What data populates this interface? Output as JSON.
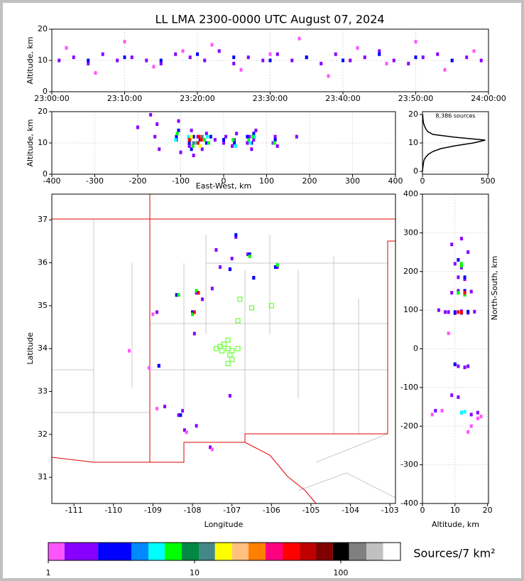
{
  "chart_data": [
    {
      "type": "scatter",
      "title": "LL LMA 2300-0000 UTC August 07, 2024",
      "ylabel": "Altitude, km",
      "xlim": [
        "23:00:00",
        "24:00:00"
      ],
      "xticks": [
        "23:00:00",
        "23:10:00",
        "23:20:00",
        "23:30:00",
        "23:40:00",
        "23:50:00",
        "24:00:00"
      ],
      "ylim": [
        0,
        20
      ],
      "yticks": [
        0,
        10,
        20
      ],
      "grid": true,
      "series": [
        {
          "color": "#8800ff",
          "x": [
            "23:01:00",
            "23:03:00",
            "23:05:00",
            "23:07:00",
            "23:09:00",
            "23:11:00",
            "23:13:00",
            "23:15:00",
            "23:17:00",
            "23:19:00",
            "23:21:00",
            "23:23:00",
            "23:25:00",
            "23:27:00",
            "23:29:00",
            "23:31:00",
            "23:33:00",
            "23:35:00",
            "23:37:00",
            "23:39:00",
            "23:41:00",
            "23:43:00",
            "23:45:00",
            "23:47:00",
            "23:49:00",
            "23:51:00",
            "23:53:00",
            "23:55:00",
            "23:57:00",
            "23:59:00"
          ],
          "y": [
            10,
            11,
            9,
            12,
            10,
            11,
            10,
            9,
            12,
            11,
            10,
            13,
            9,
            11,
            10,
            12,
            10,
            11,
            9,
            12,
            10,
            11,
            13,
            10,
            9,
            11,
            12,
            10,
            11,
            10
          ]
        },
        {
          "color": "#ff55ff",
          "x": [
            "23:02:00",
            "23:06:00",
            "23:10:00",
            "23:14:00",
            "23:18:00",
            "23:22:00",
            "23:26:00",
            "23:30:00",
            "23:34:00",
            "23:38:00",
            "23:42:00",
            "23:46:00",
            "23:50:00",
            "23:54:00",
            "23:58:00"
          ],
          "y": [
            14,
            6,
            16,
            8,
            13,
            15,
            7,
            12,
            17,
            5,
            14,
            9,
            16,
            7,
            13
          ]
        },
        {
          "color": "#0000ff",
          "x": [
            "23:05:00",
            "23:10:00",
            "23:15:00",
            "23:20:00",
            "23:25:00",
            "23:30:00",
            "23:35:00",
            "23:40:00",
            "23:45:00",
            "23:50:00",
            "23:55:00"
          ],
          "y": [
            10,
            11,
            10,
            12,
            11,
            10,
            11,
            10,
            12,
            11,
            10
          ]
        }
      ]
    },
    {
      "type": "scatter",
      "xlabel": "East-West, km",
      "ylabel": "Altitude, km",
      "xlim": [
        -400,
        400
      ],
      "xticks": [
        -400,
        -300,
        -200,
        -100,
        0,
        100,
        200,
        300,
        400
      ],
      "ylim": [
        0,
        20
      ],
      "yticks": [
        0,
        10,
        20
      ],
      "grid": true,
      "series": [
        {
          "color": "#8800ff",
          "x": [
            -160,
            -155,
            -150,
            -110,
            -105,
            -100,
            -80,
            -75,
            -70,
            -60,
            -50,
            -40,
            -35,
            -20,
            0,
            5,
            20,
            25,
            30,
            55,
            60,
            65,
            70,
            75,
            115,
            120,
            125,
            -200,
            -170,
            170
          ],
          "y": [
            12,
            16,
            8,
            11,
            17,
            7,
            9,
            14,
            6,
            12,
            8,
            13,
            10,
            11,
            10,
            12,
            9,
            11,
            13,
            10,
            12,
            8,
            11,
            14,
            10,
            12,
            9,
            15,
            19,
            12
          ]
        },
        {
          "color": "#0000ff",
          "x": [
            -110,
            -105,
            -80,
            -75,
            -70,
            -55,
            -40,
            -30,
            0,
            25,
            55,
            65,
            70,
            120
          ],
          "y": [
            12,
            14,
            10,
            8,
            12,
            11,
            10,
            12,
            11,
            10,
            12,
            10,
            13,
            11
          ]
        },
        {
          "color": "#00ffff",
          "x": [
            -112,
            -82,
            -65,
            -38,
            28,
            62,
            72
          ],
          "y": [
            11,
            12,
            10,
            12,
            9,
            10,
            12
          ]
        },
        {
          "color": "#00ff00",
          "x": [
            -108,
            -78,
            -72,
            -45,
            -35,
            22,
            58,
            68,
            118
          ],
          "y": [
            13,
            11,
            9,
            11,
            10,
            11,
            11,
            12,
            10
          ]
        },
        {
          "color": "#448888",
          "x": [
            -70,
            -50
          ],
          "y": [
            10,
            12
          ]
        },
        {
          "color": "#ffff00",
          "x": [
            -75,
            -55
          ],
          "y": [
            12,
            9
          ]
        },
        {
          "color": "#ff0000",
          "x": [
            -80,
            -60,
            -57,
            -52
          ],
          "y": [
            11,
            10,
            12,
            11
          ]
        }
      ]
    },
    {
      "type": "line",
      "annotation": "8,386 sources",
      "xlim": [
        0,
        505
      ],
      "xticks": [
        0,
        500
      ],
      "ylim": [
        -1,
        21
      ],
      "yticks": [
        0,
        10,
        20
      ],
      "grid": true,
      "series": [
        {
          "color": "#000000",
          "x": [
            0,
            2,
            5,
            8,
            12,
            25,
            45,
            80,
            140,
            250,
            390,
            480,
            250,
            80,
            40,
            25,
            15,
            8,
            5,
            3,
            2
          ],
          "y": [
            0,
            1,
            2,
            3,
            4,
            5,
            6,
            7,
            8,
            9,
            10,
            11,
            12,
            13,
            14,
            15,
            16,
            17,
            18,
            19,
            20
          ]
        }
      ]
    },
    {
      "type": "scatter",
      "xlabel": "Longitude",
      "ylabel": "Latitude",
      "xlim": [
        -111.56,
        -102.86
      ],
      "xticks": [
        -111,
        -110,
        -109,
        -108,
        -107,
        -106,
        -105,
        -104,
        -103
      ],
      "ylim": [
        30.39,
        37.6
      ],
      "yticks": [
        31,
        32,
        33,
        34,
        35,
        36,
        37
      ],
      "grid": false,
      "series": [
        {
          "color": "#8800ff",
          "x": [
            -106.9,
            -107.0,
            -106.6,
            -106.45,
            -105.85,
            -107.05,
            -107.3,
            -107.4,
            -108.4,
            -107.9,
            -107.75,
            -107.5,
            -108.0,
            -107.95,
            -108.9,
            -108.85,
            -108.7,
            -108.35,
            -108.25,
            -108.2,
            -107.05,
            -107.9,
            -107.55
          ],
          "y": [
            36.6,
            36.1,
            36.2,
            35.65,
            35.9,
            35.85,
            35.9,
            36.3,
            35.25,
            35.3,
            35.15,
            35.4,
            34.85,
            34.35,
            34.85,
            33.6,
            32.65,
            32.45,
            32.55,
            32.1,
            32.9,
            32.2,
            31.7
          ]
        },
        {
          "color": "#0000ff",
          "x": [
            -106.9,
            -106.55,
            -106.45,
            -105.9,
            -107.05,
            -108.4,
            -107.85,
            -108.0,
            -108.85,
            -108.3
          ],
          "y": [
            36.65,
            36.2,
            35.65,
            35.9,
            35.85,
            35.25,
            35.3,
            34.85,
            33.6,
            32.45
          ]
        },
        {
          "color": "#00ff00",
          "x": [
            -106.55,
            -108.35,
            -107.9,
            -108.0,
            -105.85
          ],
          "y": [
            36.15,
            35.25,
            35.35,
            34.8,
            35.95
          ]
        },
        {
          "color": "#ff0000",
          "x": [
            -107.85,
            -107.95
          ],
          "y": [
            35.3,
            34.85
          ]
        },
        {
          "color": "#ff55ff",
          "x": [
            -109.0,
            -109.1,
            -108.9,
            -108.15,
            -107.5,
            -109.6
          ],
          "y": [
            34.8,
            33.55,
            32.6,
            32.05,
            31.65,
            33.95
          ]
        },
        {
          "color": "#66ff33",
          "marker": "square",
          "x": [
            -106.8,
            -106.5,
            -106.0,
            -106.85,
            -107.1,
            -107.2,
            -107.3,
            -107.1,
            -107.4,
            -107.25,
            -107.0,
            -106.85,
            -107.05,
            -107.0,
            -107.1
          ],
          "y": [
            35.15,
            34.95,
            35.0,
            34.65,
            34.2,
            34.1,
            34.05,
            34.0,
            34.0,
            33.95,
            33.95,
            34.0,
            33.85,
            33.75,
            33.65
          ]
        }
      ]
    },
    {
      "type": "scatter",
      "xlabel": "Altitude, km",
      "ylabel": "North-South, km",
      "xlim": [
        0,
        20.3
      ],
      "xticks": [
        0,
        10,
        20
      ],
      "ylim": [
        -400,
        400
      ],
      "yticks": [
        -400,
        -300,
        -200,
        -100,
        0,
        100,
        200,
        300,
        400
      ],
      "grid": true,
      "series": [
        {
          "color": "#8800ff",
          "x": [
            8,
            10,
            12,
            14,
            16,
            9,
            11,
            13,
            15,
            5,
            7,
            12,
            10,
            11,
            13,
            9,
            12,
            14,
            11,
            10,
            13,
            12,
            15,
            4,
            17,
            9,
            11,
            14
          ],
          "y": [
            95,
            92,
            97,
            93,
            96,
            145,
            150,
            140,
            148,
            100,
            95,
            210,
            220,
            185,
            180,
            270,
            285,
            250,
            -45,
            -40,
            -48,
            -165,
            -170,
            -160,
            -165,
            -120,
            -125,
            -45
          ]
        },
        {
          "color": "#0000ff",
          "x": [
            10,
            12,
            14,
            11,
            13,
            12,
            11,
            13,
            12,
            10
          ],
          "y": [
            95,
            93,
            96,
            145,
            150,
            215,
            230,
            185,
            -165,
            -40
          ]
        },
        {
          "color": "#00ff00",
          "x": [
            11,
            13,
            12,
            12
          ],
          "y": [
            145,
            140,
            215,
            220
          ]
        },
        {
          "color": "#00ffff",
          "x": [
            12,
            13
          ],
          "y": [
            -165,
            -163
          ]
        },
        {
          "color": "#ff0000",
          "x": [
            11,
            12,
            13
          ],
          "y": [
            95,
            94,
            145
          ]
        },
        {
          "color": "#ff55ff",
          "x": [
            3,
            6,
            15,
            18,
            8,
            17,
            14
          ],
          "y": [
            -170,
            -160,
            -200,
            -175,
            40,
            -180,
            -215
          ]
        }
      ]
    },
    {
      "type": "colorbar",
      "label": "Sources/7 km²",
      "log": true,
      "xlim": [
        1,
        256
      ],
      "xticks": [
        1,
        10,
        100
      ],
      "bins": [
        1,
        1.29,
        2.19,
        3.7,
        4.84,
        6.26,
        8.18,
        10.7,
        13.8,
        18.1,
        23.4,
        30.6,
        40,
        51.9,
        67.7,
        88.4,
        114,
        150,
        195,
        256
      ],
      "colors": [
        "#ff55ff",
        "#8800ff",
        "#0000ff",
        "#0088ff",
        "#00ffff",
        "#00ff00",
        "#008844",
        "#448888",
        "#ffff00",
        "#ffc080",
        "#ff8000",
        "#ff0080",
        "#ff0000",
        "#c00000",
        "#800000",
        "#000000",
        "#808080",
        "#c0c0c0",
        "#ffffff"
      ]
    }
  ]
}
